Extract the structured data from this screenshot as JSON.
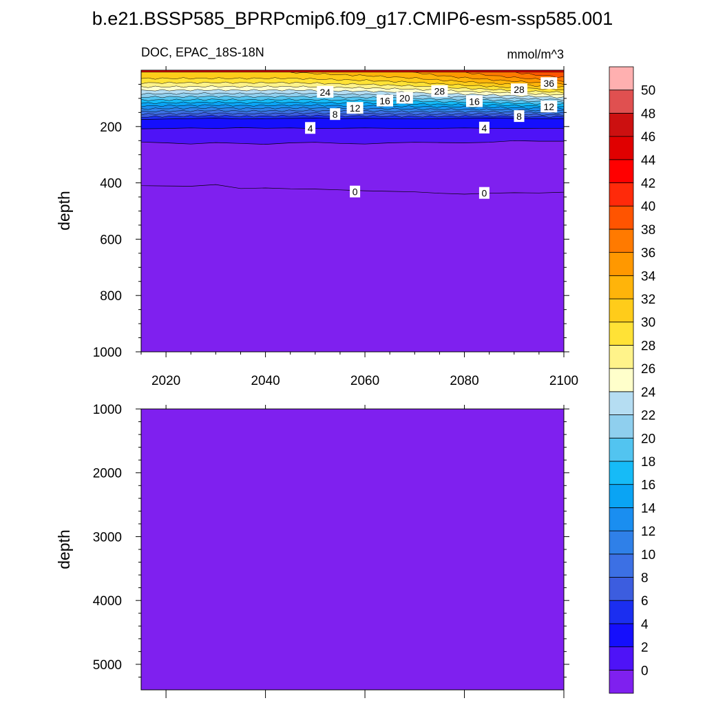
{
  "title": "b.e21.BSSP585_BPRPcmip6.f09_g17.CMIP6-esm-ssp585.001",
  "subtitle_left": "DOC, EPAC_18S-18N",
  "subtitle_right": "mmol/m^3",
  "chart_data": [
    {
      "type": "heatmap",
      "panel": "upper",
      "ylabel": "depth",
      "xlabel": "",
      "xlim": [
        2015,
        2100
      ],
      "ylim": [
        0,
        1000
      ],
      "y_inverted": true,
      "x_ticks": [
        2020,
        2040,
        2060,
        2080,
        2100
      ],
      "y_ticks": [
        200,
        400,
        600,
        800,
        1000
      ],
      "layers": [
        {
          "x": [
            2015,
            2020,
            2025,
            2030,
            2035,
            2040,
            2045,
            2050,
            2055,
            2060,
            2065,
            2070,
            2075,
            2080,
            2085,
            2090,
            2095,
            2100
          ],
          "top_value": 4,
          "depth": [
            175,
            173,
            172,
            170,
            173,
            172,
            171,
            170,
            172,
            171,
            172,
            173,
            172,
            171,
            170,
            171,
            172,
            172
          ]
        },
        {
          "x": [
            2015,
            2020,
            2025,
            2030,
            2035,
            2040,
            2045,
            2050,
            2055,
            2060,
            2065,
            2070,
            2075,
            2080,
            2085,
            2090,
            2095,
            2100
          ],
          "top_value": 2,
          "depth": [
            208,
            207,
            205,
            207,
            204,
            206,
            205,
            207,
            206,
            205,
            206,
            207,
            206,
            205,
            206,
            207,
            206,
            206
          ]
        },
        {
          "x": [
            2015,
            2020,
            2025,
            2030,
            2035,
            2040,
            2045,
            2050,
            2055,
            2060,
            2065,
            2070,
            2075,
            2080,
            2085,
            2090,
            2095,
            2100
          ],
          "top_value": 0,
          "depth": [
            255,
            258,
            262,
            257,
            260,
            263,
            258,
            256,
            260,
            262,
            258,
            256,
            257,
            258,
            256,
            250,
            252,
            252
          ]
        },
        {
          "x": [
            2015,
            2020,
            2025,
            2030,
            2035,
            2040,
            2045,
            2050,
            2055,
            2060,
            2065,
            2070,
            2075,
            2080,
            2085,
            2090,
            2095,
            2100
          ],
          "top_value": -2,
          "depth": [
            410,
            411,
            412,
            406,
            420,
            418,
            421,
            422,
            425,
            428,
            430,
            432,
            437,
            440,
            437,
            435,
            436,
            433
          ]
        }
      ],
      "surface_values": [
        {
          "x": 2015,
          "v": 32
        },
        {
          "x": 2030,
          "v": 32
        },
        {
          "x": 2045,
          "v": 32
        },
        {
          "x": 2060,
          "v": 33
        },
        {
          "x": 2070,
          "v": 34
        },
        {
          "x": 2080,
          "v": 36
        },
        {
          "x": 2090,
          "v": 38
        },
        {
          "x": 2100,
          "v": 40
        }
      ],
      "contour_labels": [
        {
          "text": "24",
          "x": 2052,
          "y": 78
        },
        {
          "text": "16",
          "x": 2064,
          "y": 109
        },
        {
          "text": "20",
          "x": 2068,
          "y": 99
        },
        {
          "text": "28",
          "x": 2075,
          "y": 75
        },
        {
          "text": "16",
          "x": 2082,
          "y": 111
        },
        {
          "text": "28",
          "x": 2091,
          "y": 69
        },
        {
          "text": "36",
          "x": 2097,
          "y": 47
        },
        {
          "text": "12",
          "x": 2058,
          "y": 135
        },
        {
          "text": "12",
          "x": 2097,
          "y": 130
        },
        {
          "text": "8",
          "x": 2054,
          "y": 157
        },
        {
          "text": "8",
          "x": 2091,
          "y": 164
        },
        {
          "text": "4",
          "x": 2049,
          "y": 206
        },
        {
          "text": "4",
          "x": 2084,
          "y": 205
        },
        {
          "text": "0",
          "x": 2058,
          "y": 432
        },
        {
          "text": "0",
          "x": 2084,
          "y": 437
        }
      ]
    },
    {
      "type": "heatmap",
      "panel": "lower",
      "ylabel": "depth",
      "xlabel": "",
      "xlim": [
        2015,
        2100
      ],
      "ylim": [
        1000,
        5400
      ],
      "y_inverted": true,
      "y_ticks": [
        1000,
        2000,
        3000,
        4000,
        5000
      ],
      "fill_value": -2
    }
  ],
  "colorbar": {
    "levels": [
      0,
      2,
      4,
      6,
      8,
      10,
      12,
      14,
      16,
      18,
      20,
      22,
      24,
      26,
      28,
      30,
      32,
      34,
      36,
      38,
      40,
      42,
      44,
      46,
      48,
      50
    ],
    "colors": [
      "#7f20ef",
      "#4e13f7",
      "#150ffc",
      "#1b2ef0",
      "#3c5ddf",
      "#3c70e4",
      "#2f80e8",
      "#1a8ef0",
      "#0aa4f4",
      "#16bbf7",
      "#52c4f0",
      "#8fcfee",
      "#b5ddf2",
      "#ffffcb",
      "#fff38a",
      "#ffe236",
      "#ffcc1a",
      "#ffb40a",
      "#ff9800",
      "#ff7a00",
      "#ff5400",
      "#ff2a0a",
      "#ff0000",
      "#e00000",
      "#cc1010",
      "#e05050",
      "#ffb0b0"
    ]
  }
}
